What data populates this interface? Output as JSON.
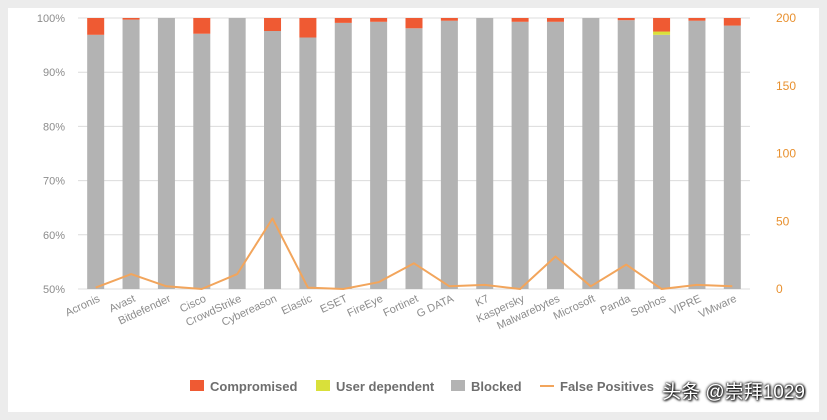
{
  "chart_data": {
    "type": "bar",
    "stacked": true,
    "categories": [
      "Acronis",
      "Avast",
      "Bitdefender",
      "Cisco",
      "CrowdStrike",
      "Cybereason",
      "Elastic",
      "ESET",
      "FireEye",
      "Fortinet",
      "G DATA",
      "K7",
      "Kaspersky",
      "Malwarebytes",
      "Microsoft",
      "Panda",
      "Sophos",
      "VIPRE",
      "VMware"
    ],
    "series": [
      {
        "name": "Blocked",
        "color": "#b3b3b3",
        "values": [
          96.9,
          99.7,
          100,
          97.1,
          100,
          97.6,
          96.4,
          99.1,
          99.3,
          98.1,
          99.5,
          100,
          99.3,
          99.3,
          100,
          99.6,
          96.9,
          99.5,
          98.6
        ]
      },
      {
        "name": "User dependent",
        "color": "#d9e03a",
        "values": [
          0,
          0,
          0,
          0,
          0,
          0,
          0,
          0,
          0,
          0,
          0,
          0,
          0,
          0,
          0,
          0,
          0.6,
          0,
          0
        ]
      },
      {
        "name": "Compromised",
        "color": "#ef5a33",
        "values": [
          3.1,
          0.3,
          0,
          2.9,
          0,
          2.4,
          3.6,
          0.9,
          0.7,
          1.9,
          0.5,
          0,
          0.7,
          0.7,
          0,
          0.4,
          2.5,
          0.5,
          1.4
        ]
      },
      {
        "name": "False Positives",
        "type": "line",
        "axis": "right",
        "color": "#f2a55c",
        "values": [
          1,
          11,
          2,
          0,
          11,
          52,
          1,
          0,
          5,
          19,
          2,
          3,
          0,
          24,
          2,
          18,
          0,
          3,
          2
        ]
      }
    ],
    "y_left": {
      "min": 50,
      "max": 100,
      "ticks": [
        "50%",
        "60%",
        "70%",
        "80%",
        "90%",
        "100%"
      ],
      "tick_values": [
        50,
        60,
        70,
        80,
        90,
        100
      ]
    },
    "y_right": {
      "min": 0,
      "max": 200,
      "ticks": [
        "0",
        "50",
        "100",
        "150",
        "200"
      ],
      "tick_values": [
        0,
        50,
        100,
        150,
        200
      ]
    },
    "legend": {
      "position": "bottom",
      "items": [
        {
          "label": "Compromised",
          "color": "#ef5a33",
          "kind": "box"
        },
        {
          "label": "User dependent",
          "color": "#d9e03a",
          "kind": "box"
        },
        {
          "label": "Blocked",
          "color": "#b3b3b3",
          "kind": "box"
        },
        {
          "label": "False Positives",
          "color": "#f2a55c",
          "kind": "line"
        }
      ]
    }
  },
  "watermark": "头条 @崇拜1029"
}
